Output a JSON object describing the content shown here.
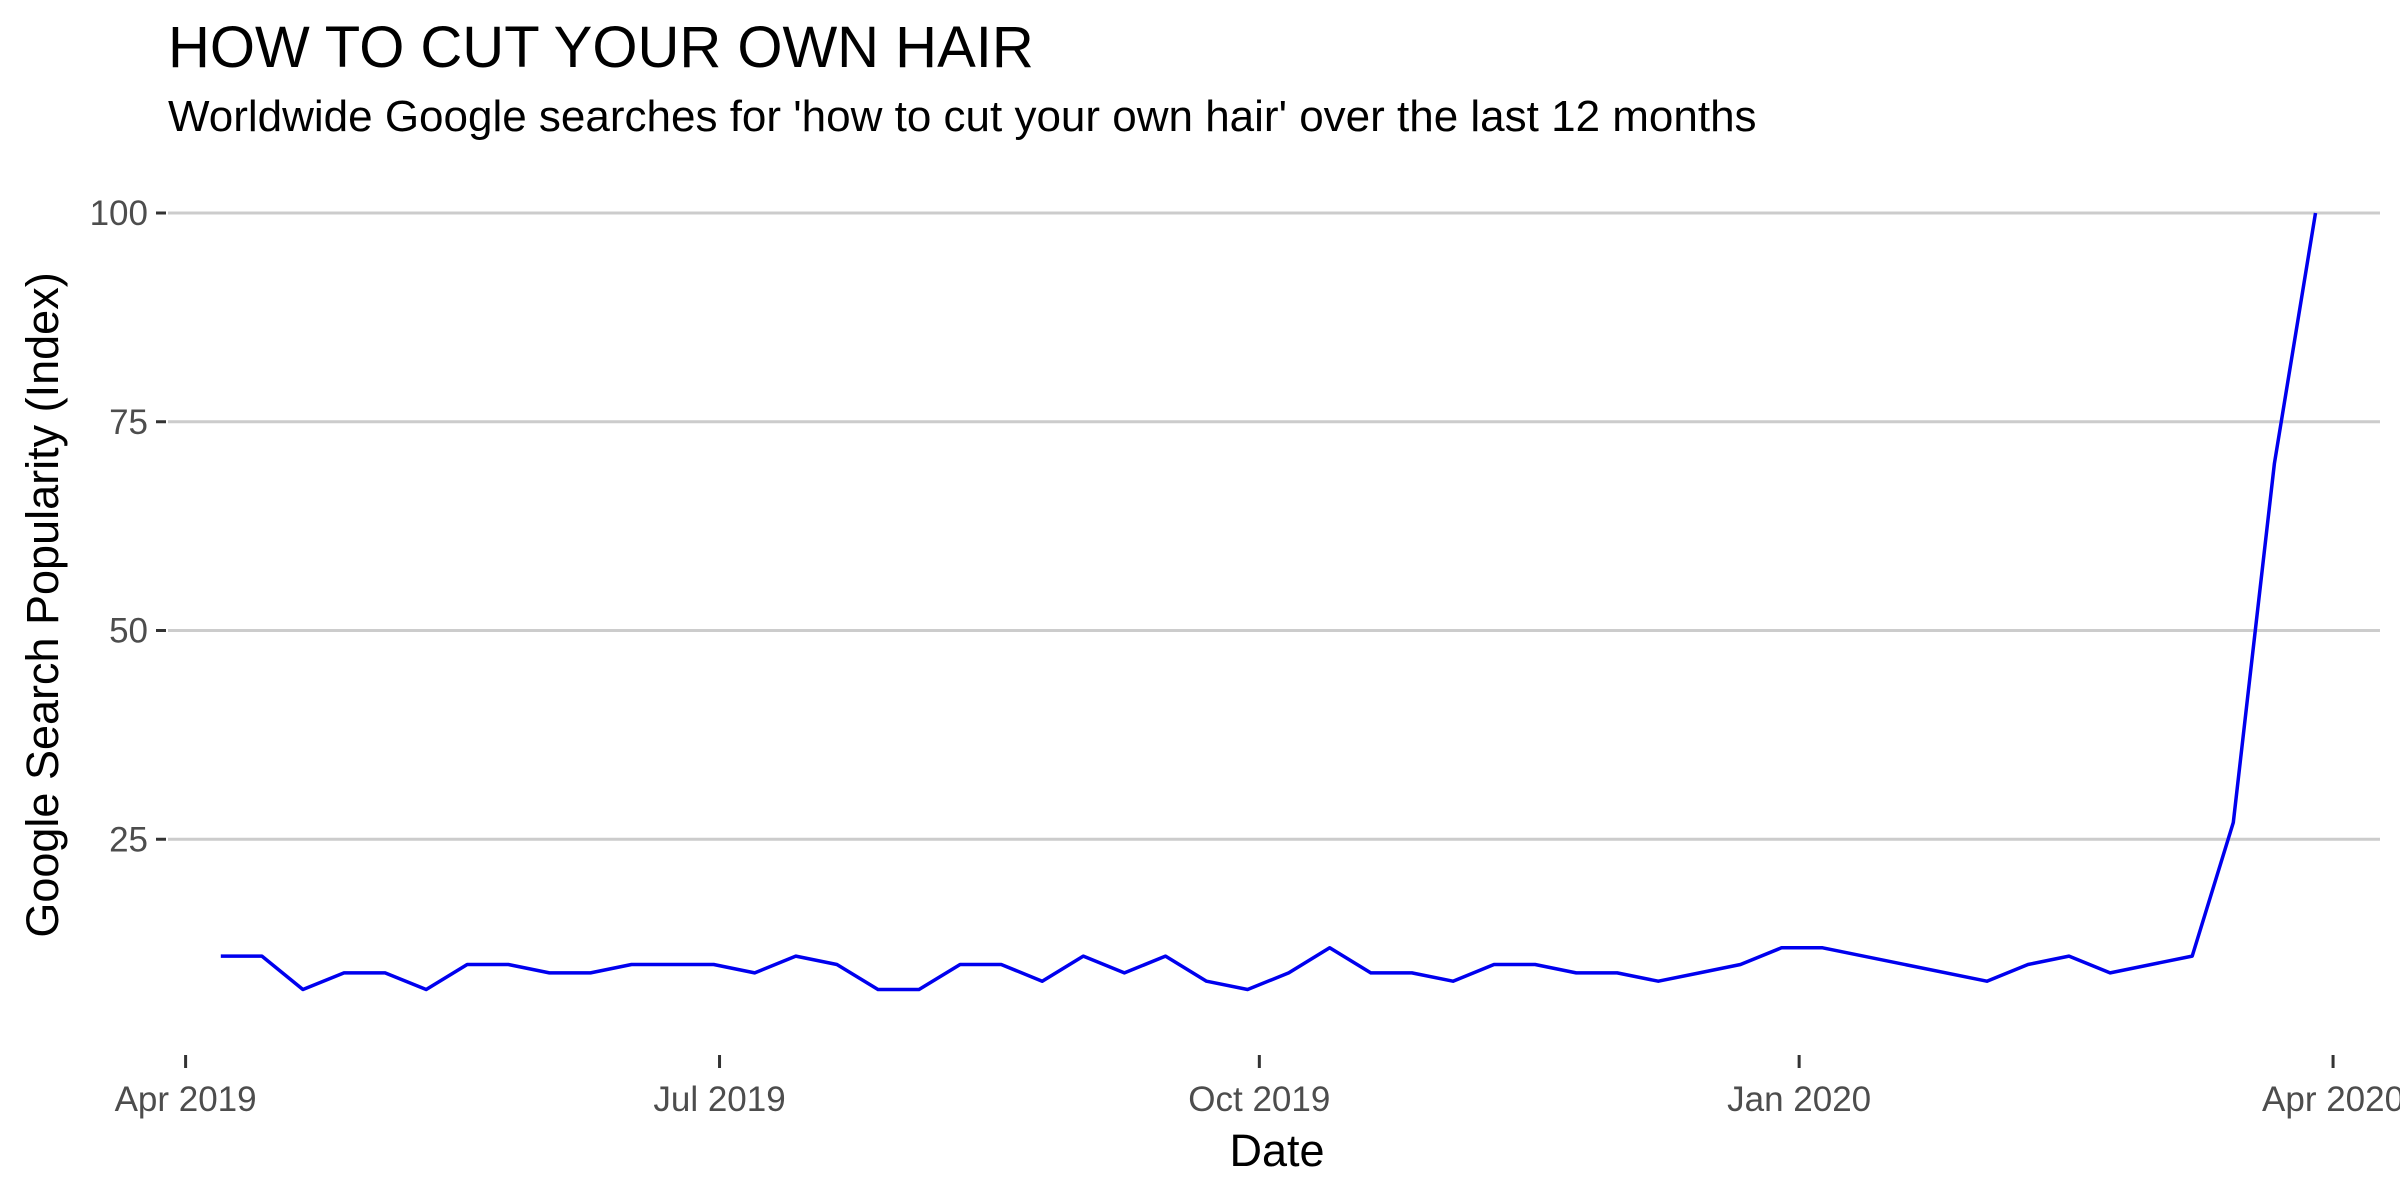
{
  "chart_data": {
    "type": "line",
    "title": "HOW TO CUT YOUR OWN HAIR",
    "subtitle": "Worldwide Google searches for 'how to cut your own hair' over the last 12 months",
    "xlabel": "Date",
    "ylabel": "Google Search Popularity (Index)",
    "x_ticks": [
      {
        "date": "2019-04-01",
        "label": "Apr 2019"
      },
      {
        "date": "2019-07-01",
        "label": "Jul 2019"
      },
      {
        "date": "2019-10-01",
        "label": "Oct 2019"
      },
      {
        "date": "2020-01-01",
        "label": "Jan 2020"
      },
      {
        "date": "2020-04-01",
        "label": "Apr 2020"
      }
    ],
    "xlim": [
      "2019-03-29",
      "2020-04-09"
    ],
    "ylim": [
      0,
      100
    ],
    "y_ticks": [
      25,
      50,
      75,
      100
    ],
    "grid": {
      "horizontal": true,
      "vertical": false
    },
    "line_color": "#0000ee",
    "series": [
      {
        "x": [
          "2019-04-07",
          "2019-04-14",
          "2019-04-21",
          "2019-04-28",
          "2019-05-05",
          "2019-05-12",
          "2019-05-19",
          "2019-05-26",
          "2019-06-02",
          "2019-06-09",
          "2019-06-16",
          "2019-06-23",
          "2019-06-30",
          "2019-07-07",
          "2019-07-14",
          "2019-07-21",
          "2019-07-28",
          "2019-08-04",
          "2019-08-11",
          "2019-08-18",
          "2019-08-25",
          "2019-09-01",
          "2019-09-08",
          "2019-09-15",
          "2019-09-22",
          "2019-09-29",
          "2019-10-06",
          "2019-10-13",
          "2019-10-20",
          "2019-10-27",
          "2019-11-03",
          "2019-11-10",
          "2019-11-17",
          "2019-11-24",
          "2019-12-01",
          "2019-12-08",
          "2019-12-15",
          "2019-12-22",
          "2019-12-29",
          "2020-01-05",
          "2020-02-02",
          "2020-02-09",
          "2020-02-16",
          "2020-02-23",
          "2020-03-08",
          "2020-03-15",
          "2020-03-22",
          "2020-03-29"
        ],
        "y": [
          11,
          11,
          7,
          9,
          9,
          7,
          10,
          10,
          9,
          9,
          10,
          10,
          10,
          9,
          11,
          10,
          7,
          7,
          10,
          10,
          8,
          11,
          9,
          11,
          8,
          7,
          9,
          12,
          9,
          9,
          8,
          10,
          10,
          9,
          9,
          8,
          9,
          10,
          12,
          12,
          8,
          10,
          11,
          9,
          11,
          27,
          70,
          100
        ]
      }
    ]
  }
}
